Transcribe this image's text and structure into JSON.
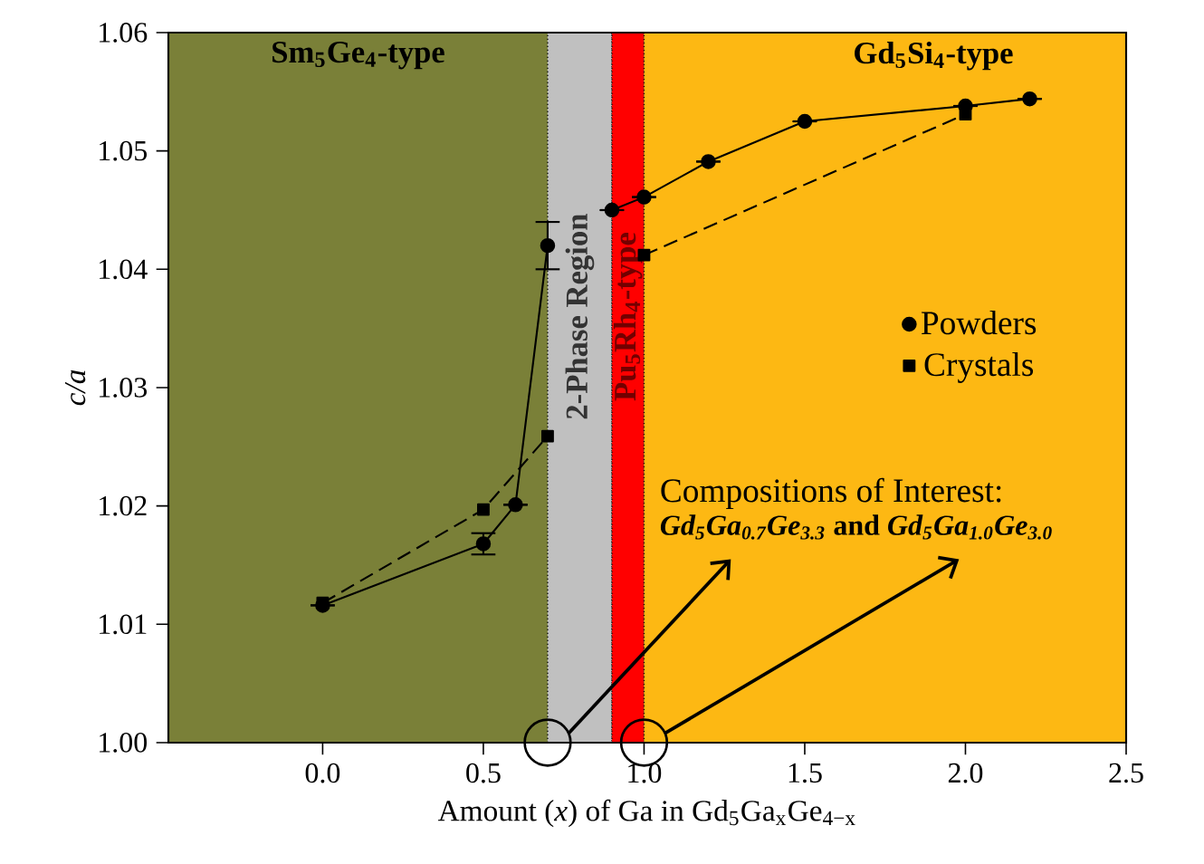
{
  "chart_data": {
    "type": "line",
    "xlabel": "Amount (*x*) of Ga in Gd$_{5}$Ga$_{x}$Ge$_{4−x}$",
    "ylabel": "c/a",
    "xlim": [
      -0.48,
      2.5
    ],
    "ylim": [
      1.0,
      1.06
    ],
    "xticks": [
      {
        "value": 0,
        "label": "0.0"
      },
      {
        "value": 0.5,
        "label": "0.5"
      },
      {
        "value": 1,
        "label": "1.0"
      },
      {
        "value": 1.5,
        "label": "1.5"
      },
      {
        "value": 2,
        "label": "2.0"
      },
      {
        "value": 2.5,
        "label": "2.5"
      }
    ],
    "yticks": [
      {
        "value": 1.0,
        "label": "1.00"
      },
      {
        "value": 1.01,
        "label": "1.01"
      },
      {
        "value": 1.02,
        "label": "1.02"
      },
      {
        "value": 1.03,
        "label": "1.03"
      },
      {
        "value": 1.04,
        "label": "1.04"
      },
      {
        "value": 1.05,
        "label": "1.05"
      },
      {
        "value": 1.06,
        "label": "1.06"
      }
    ],
    "series": [
      {
        "name": "Powders",
        "color": "#000000",
        "marker": "circle",
        "line_style": "solid",
        "x": [
          0,
          0.5,
          0.6,
          0.7,
          0.8,
          0.9,
          1.0,
          1.2,
          1.5,
          2.0,
          2.2
        ],
        "values": [
          1.0116,
          1.0168,
          1.0201,
          1.042,
          null,
          1.045,
          1.0461,
          1.0491,
          1.0525,
          1.0538,
          1.0544
        ],
        "errors": [
          null,
          0.0009,
          null,
          0.002,
          null,
          null,
          null,
          null,
          null,
          null,
          null
        ]
      },
      {
        "name": "Crystals",
        "color": "#000000",
        "marker": "square",
        "line_style": "dashed",
        "x": [
          0,
          0.5,
          0.7,
          0.8,
          1.0,
          2.0
        ],
        "values": [
          1.0118,
          1.0197,
          1.0259,
          null,
          1.0412,
          1.0531
        ]
      }
    ],
    "bands": [
      {
        "axis": "x",
        "from": -0.48,
        "to": 0.7,
        "label": "Sm$_{5}$Ge$_{4}$-type",
        "color": "#7a8038"
      },
      {
        "axis": "x",
        "from": 0.7,
        "to": 0.9,
        "label": "2-Phase Region",
        "color": "#c0c0c0"
      },
      {
        "axis": "x",
        "from": 0.9,
        "to": 1.0,
        "label": "Pu$_{5}$Rh$_{4}$-type",
        "color": "#ff0000"
      },
      {
        "axis": "x",
        "from": 1.0,
        "to": 2.5,
        "label": "Gd$_{5}$Si$_{4}$-type",
        "color": "#fdb813"
      }
    ],
    "annotations": [
      "Compositions of Interest:",
      "*Gd$_{5}$Ga$_{0.7}$Ge$_{3.3}$* and *Gd$_{5}$Ga$_{1.0}$Ge$_{3.0}$*"
    ],
    "legend": "right",
    "grid": false
  }
}
